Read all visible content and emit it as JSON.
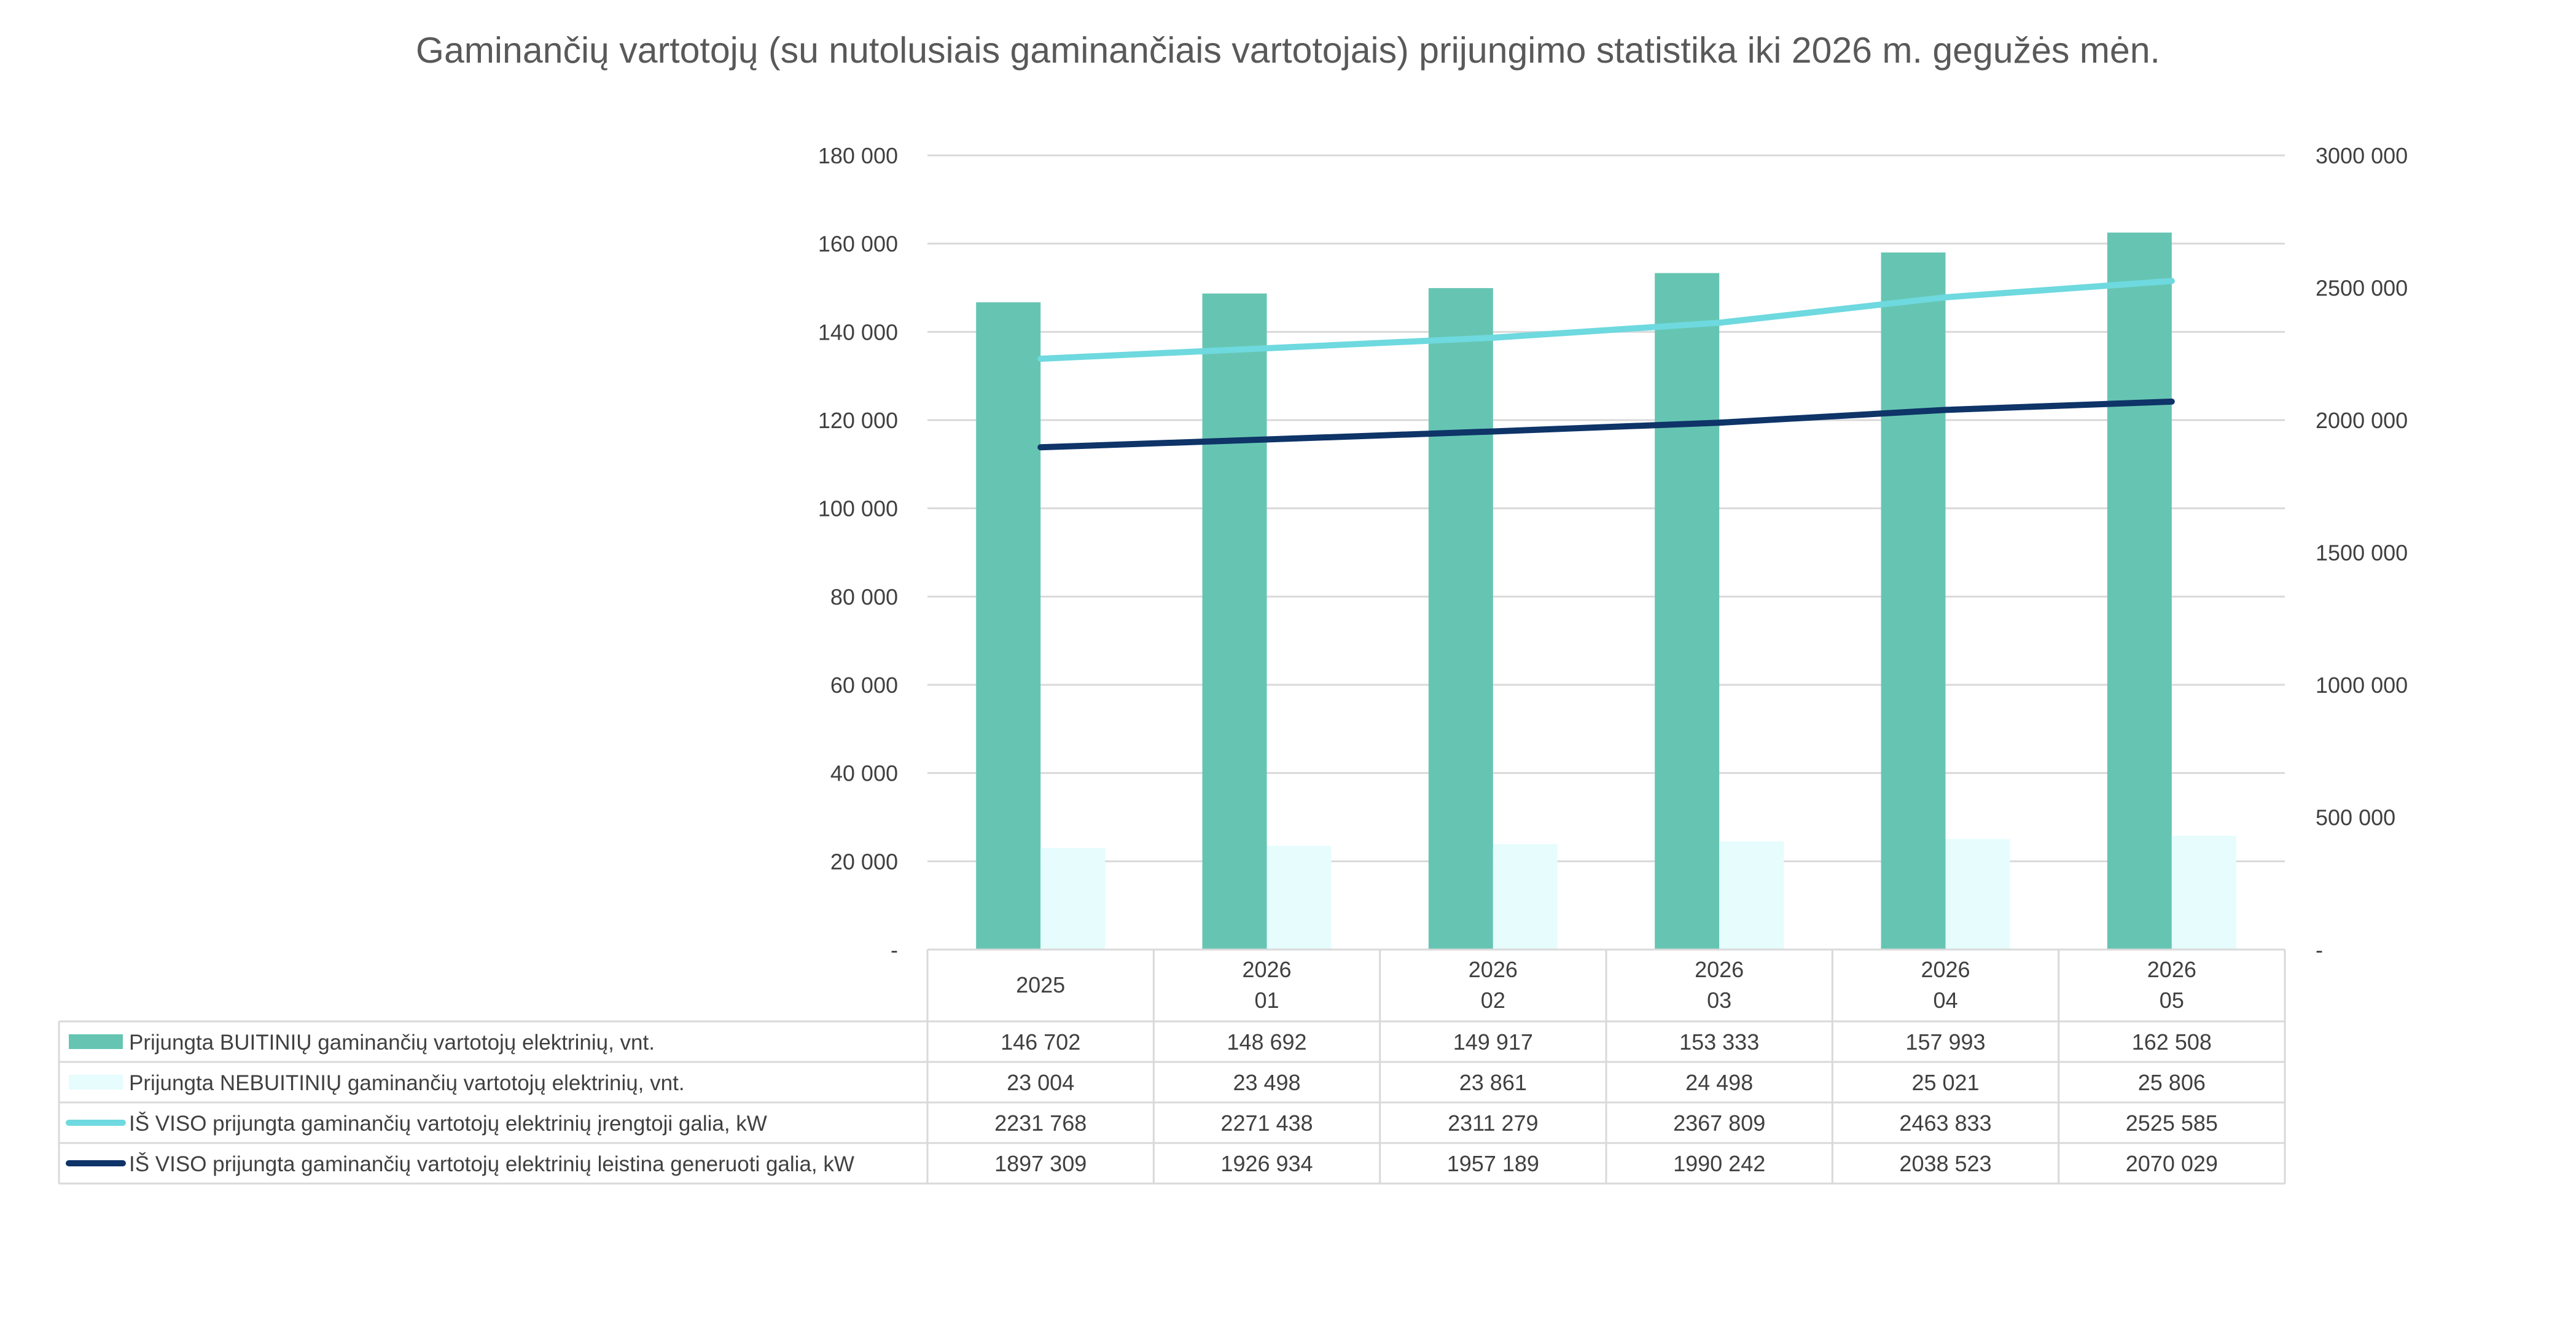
{
  "chart_data": {
    "type": "bar",
    "title": "Gaminančių vartotojų (su nutolusiais gaminančiais vartotojais) prijungimo statistika iki 2026 m. gegužės mėn.",
    "categories": [
      {
        "year": "2025",
        "month": ""
      },
      {
        "year": "2026",
        "month": "01"
      },
      {
        "year": "2026",
        "month": "02"
      },
      {
        "year": "2026",
        "month": "03"
      },
      {
        "year": "2026",
        "month": "04"
      },
      {
        "year": "2026",
        "month": "05"
      }
    ],
    "y_left": {
      "ylim": [
        0,
        180000
      ],
      "ticks": [
        0,
        20000,
        40000,
        60000,
        80000,
        100000,
        120000,
        140000,
        160000,
        180000
      ],
      "tick_labels": [
        "-",
        "20 000",
        "40 000",
        "60 000",
        "80 000",
        "100 000",
        "120 000",
        "140 000",
        "160 000",
        "180 000"
      ]
    },
    "y_right": {
      "ylim": [
        0,
        3000000
      ],
      "ticks": [
        0,
        500000,
        1000000,
        1500000,
        2000000,
        2500000,
        3000000
      ],
      "tick_labels": [
        "-",
        "500 000",
        "1000 000",
        "1500 000",
        "2000 000",
        "2500 000",
        "3000 000"
      ]
    },
    "grid": true,
    "legend": "data-table",
    "series": [
      {
        "name": "Prijungta BUITINIŲ gaminančių vartotojų elektrinių, vnt.",
        "type": "bar",
        "axis": "left",
        "color": "#66C5B2",
        "values": [
          146702,
          148692,
          149917,
          153333,
          157993,
          162508
        ],
        "labels": [
          "146 702",
          "148 692",
          "149 917",
          "153 333",
          "157 993",
          "162 508"
        ]
      },
      {
        "name": "Prijungta NEBUITINIŲ gaminančių vartotojų elektrinių, vnt.",
        "type": "bar",
        "axis": "left",
        "color": "#E6FCFD",
        "values": [
          23004,
          23498,
          23861,
          24498,
          25021,
          25806
        ],
        "labels": [
          "23 004",
          "23 498",
          "23 861",
          "24 498",
          "25 021",
          "25 806"
        ]
      },
      {
        "name": "IŠ VISO prijungta gaminančių vartotojų elektrinių įrengtoji galia, kW",
        "type": "line",
        "axis": "right",
        "color": "#6ED9DF",
        "values": [
          2231768,
          2271438,
          2311279,
          2367809,
          2463833,
          2525585
        ],
        "labels": [
          "2231 768",
          "2271 438",
          "2311 279",
          "2367 809",
          "2463 833",
          "2525 585"
        ]
      },
      {
        "name": "IŠ VISO prijungta gaminančių vartotojų elektrinių leistina generuoti galia, kW",
        "type": "line",
        "axis": "right",
        "color": "#0E3468",
        "values": [
          1897309,
          1926934,
          1957189,
          1990242,
          2038523,
          2070029
        ],
        "labels": [
          "1897 309",
          "1926 934",
          "1957 189",
          "1990 242",
          "2038 523",
          "2070 029"
        ]
      }
    ]
  }
}
